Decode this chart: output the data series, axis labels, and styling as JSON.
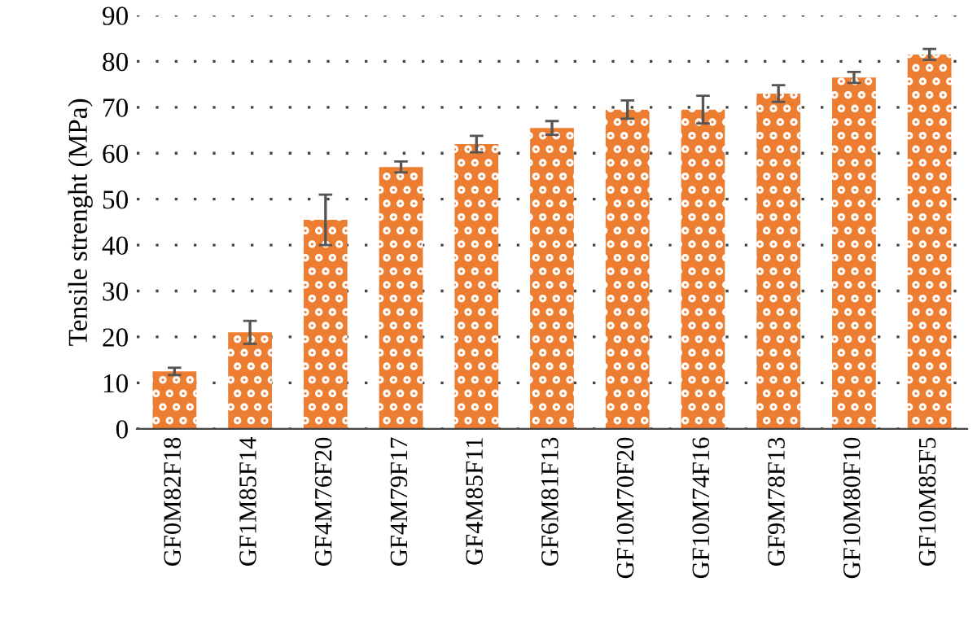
{
  "chart_data": {
    "type": "bar",
    "ylabel": "Tensile strenght (MPa)",
    "categories": [
      "GF0M82F18",
      "GF1M85F14",
      "GF4M76F20",
      "GF4M79F17",
      "GF4M85F11",
      "GF6M81F13",
      "GF10M70F20",
      "GF10M74F16",
      "GF9M78F13",
      "GF10M80F10",
      "GF10M85F5"
    ],
    "values": [
      12.5,
      21,
      45.5,
      57,
      62,
      65.5,
      69.5,
      69.5,
      73,
      76.5,
      81.5
    ],
    "errors": [
      0.8,
      2.5,
      5.5,
      1.2,
      1.8,
      1.5,
      2,
      3,
      1.8,
      1.2,
      1.2
    ],
    "color": "#ed7d31",
    "ylim": [
      0,
      90
    ],
    "yticks": [
      0,
      10,
      20,
      30,
      40,
      50,
      60,
      70,
      80,
      90
    ],
    "grid": "y"
  }
}
